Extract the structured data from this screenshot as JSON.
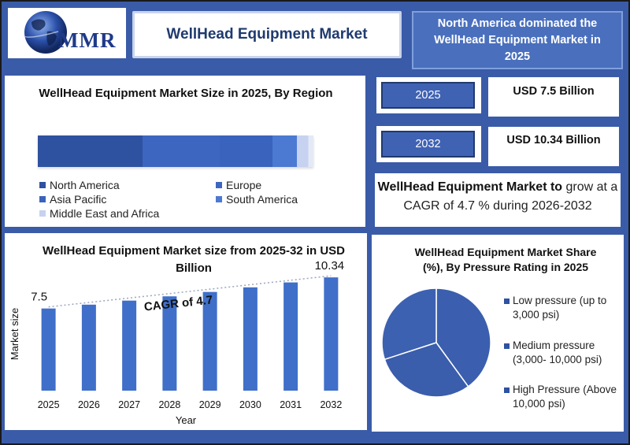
{
  "header": {
    "title": "WellHead Equipment Market",
    "logo_text": "MMR",
    "highlight": "North America dominated the WellHead Equipment Market in 2025"
  },
  "stats": {
    "year_start": "2025",
    "value_start": "USD 7.5 Billion",
    "year_end": "2032",
    "value_end": "USD 10.34 Billion",
    "cagr_bold": "WellHead Equipment Market to",
    "cagr_rest": " grow at a CAGR of 4.7 % during 2026-2032"
  },
  "colors": {
    "background": "#3a5ba8",
    "bar": "#3f6fc9",
    "title_text": "#1f3a6e",
    "north_america": "#2f52a0",
    "europe": "#3d66c0",
    "asia_pacific": "#3a63bd",
    "south_america": "#4c79d2",
    "middle_east_africa": "#c6d2ef"
  },
  "chart_data": [
    {
      "type": "bar",
      "title": "WellHead Equipment Market Size in 2025, By Region",
      "stacked": true,
      "legend": [
        "North America",
        "Europe",
        "Asia Pacific",
        "South America",
        "Middle East and Africa"
      ],
      "values": [
        38,
        28,
        19,
        9,
        6
      ]
    },
    {
      "type": "bar",
      "title": "WellHead Equipment Market size from 2025-32 in USD Billion",
      "xlabel": "Year",
      "ylabel": "Market size",
      "categories": [
        "2025",
        "2026",
        "2027",
        "2028",
        "2029",
        "2030",
        "2031",
        "2032"
      ],
      "values": [
        7.5,
        7.85,
        8.22,
        8.61,
        9.01,
        9.43,
        9.88,
        10.34
      ],
      "data_labels": {
        "2025": "7.5",
        "2032": "10.34"
      },
      "annotation": "CAGR of 4.7",
      "ylim": [
        0,
        11
      ],
      "trendline": "dotted"
    },
    {
      "type": "pie",
      "title": "WellHead Equipment Market Share (%), By Pressure Rating in 2025",
      "labels": [
        "Low pressure (up to 3,000 psi)",
        "Medium pressure (3,000- 10,000 psi)",
        "High Pressure (Above 10,000 psi)"
      ],
      "values": [
        40,
        30,
        30
      ],
      "colors": [
        "#3b5fae",
        "#3a5dac",
        "#3d61b1"
      ]
    }
  ]
}
